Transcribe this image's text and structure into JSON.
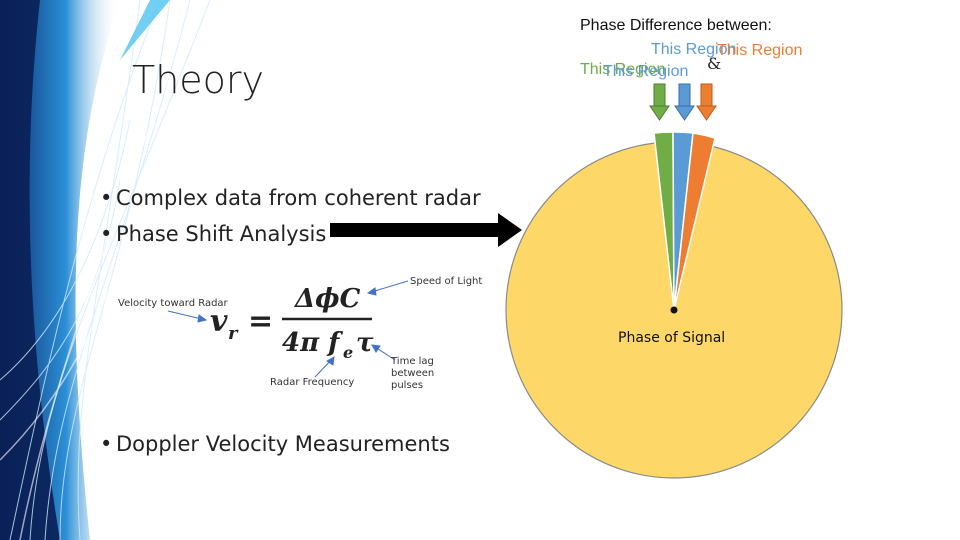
{
  "slide": {
    "title": "Theory",
    "bullets": [
      "Complex data from coherent radar",
      "Phase Shift Analysis",
      "Doppler Velocity Measurements"
    ],
    "bullet_symbol": "•"
  },
  "formula": {
    "lhs": "v",
    "lhs_sub": "r",
    "equals": "=",
    "numerator": "ΔϕC",
    "denominator_prefix": "4π f",
    "denominator_sub": "e",
    "denominator_suffix": "τ",
    "annotations": {
      "velocity": "Velocity toward Radar",
      "speed_of_light": "Speed of Light",
      "time_lag": "Time lag between pulses",
      "radar_frequency": "Radar Frequency"
    }
  },
  "diagram": {
    "phase_title": "Phase Difference between:",
    "region_label": "This Region",
    "ampersand": "&",
    "center_label": "Phase of Signal",
    "colors": {
      "pie": "#FDD868",
      "green": "#70AD47",
      "blue": "#5B9BD5",
      "orange": "#ED7D31",
      "dark_arrow": "#000000"
    }
  }
}
